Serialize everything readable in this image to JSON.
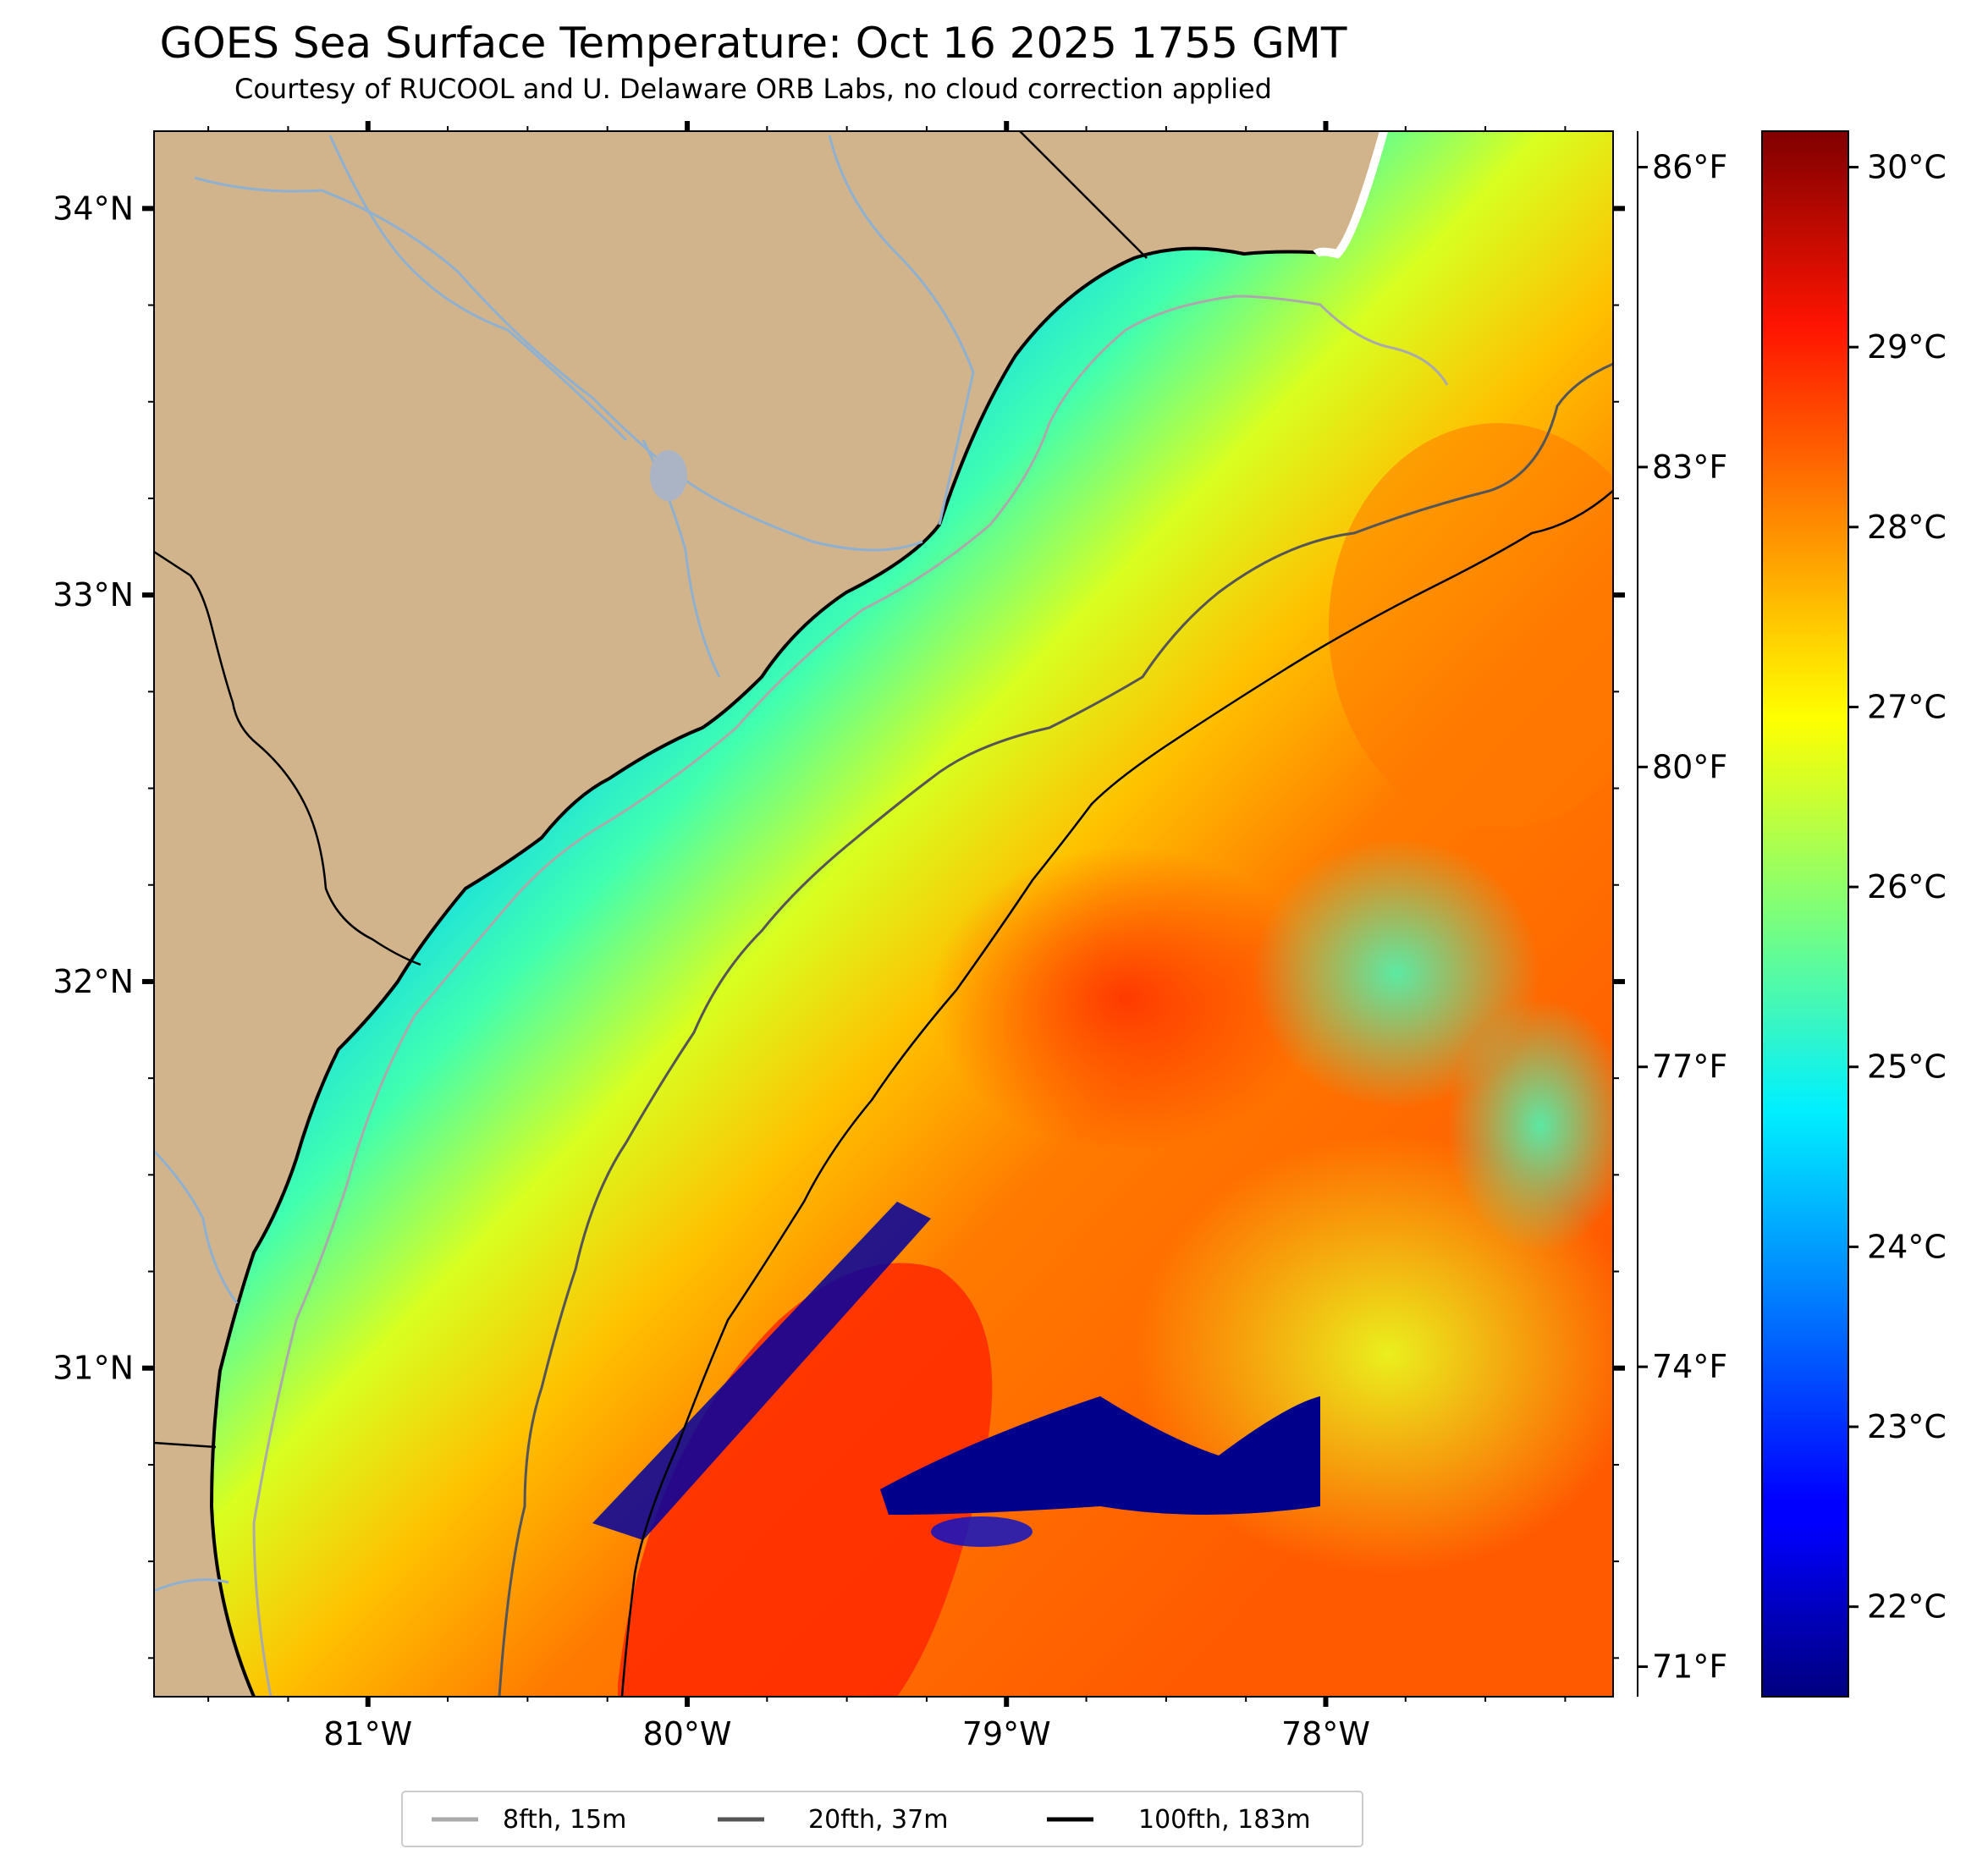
{
  "title": "GOES Sea Surface Temperature: Oct 16 2025 1755 GMT",
  "subtitle": "Courtesy of RUCOOL and U. Delaware ORB Labs, no cloud correction applied",
  "map": {
    "lon_range": [
      -81.67,
      -77.1
    ],
    "lat_range": [
      30.15,
      34.2
    ],
    "x_ticks": [
      "81°W",
      "80°W",
      "79°W",
      "78°W"
    ],
    "y_ticks": [
      "34°N",
      "33°N",
      "32°N",
      "31°N"
    ],
    "land_color": "#d2b48c",
    "ocean_nodata_color": "#ffffff"
  },
  "fahrenheit_axis": {
    "ticks": [
      "86°F",
      "83°F",
      "80°F",
      "77°F",
      "74°F",
      "71°F"
    ]
  },
  "colorbar": {
    "colormap": "jet",
    "range_c": [
      21.5,
      30.2
    ],
    "ticks": [
      "30°C",
      "29°C",
      "28°C",
      "27°C",
      "26°C",
      "25°C",
      "24°C",
      "23°C",
      "22°C"
    ]
  },
  "legend": {
    "items": [
      {
        "label": "8fth, 15m",
        "color": "#aaaaaa"
      },
      {
        "label": "20fth, 37m",
        "color": "#555555"
      },
      {
        "label": "100fth, 183m",
        "color": "#000000"
      }
    ]
  },
  "colors": {
    "coastline": "#000000",
    "rivers": "#8fb0cf",
    "state_border": "#000000"
  }
}
